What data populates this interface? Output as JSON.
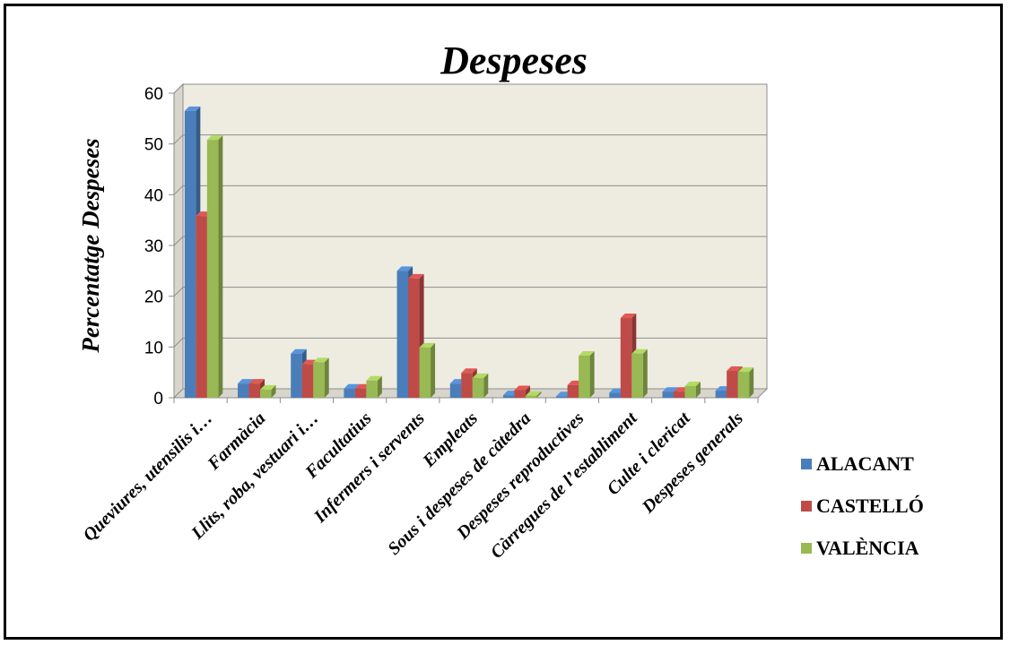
{
  "chart_data": {
    "type": "bar",
    "title": "Despeses",
    "xlabel": "",
    "ylabel": "Percentatge Despeses",
    "ylim": [
      0,
      60
    ],
    "yticks": [
      0,
      10,
      20,
      30,
      40,
      50,
      60
    ],
    "grid": true,
    "legend_position": "right",
    "categories": [
      "Queviures, utensilis i…",
      "Farmàcia",
      "Llits, roba, vestuari i…",
      "Facultatius",
      "Infermers i servents",
      "Empleats",
      "Sous i despeses de càtedra",
      "Despeses reproductives",
      "Càrregues de l’establiment",
      "Culte i clericat",
      "Despeses generals"
    ],
    "series": [
      {
        "name": "ALACANT",
        "color": "#4A7EBB",
        "values": [
          56.5,
          2.8,
          8.7,
          1.8,
          25.0,
          2.8,
          0.5,
          0.3,
          1.0,
          1.2,
          1.4
        ]
      },
      {
        "name": "CASTELLÓ",
        "color": "#BE4B48",
        "values": [
          35.8,
          2.8,
          6.6,
          1.8,
          23.5,
          4.9,
          1.5,
          2.5,
          15.7,
          1.2,
          5.3
        ]
      },
      {
        "name": "VALÈNCIA",
        "color": "#98B954",
        "values": [
          50.8,
          1.6,
          7.0,
          3.4,
          9.9,
          3.9,
          0.4,
          8.3,
          8.7,
          2.3,
          5.1
        ]
      }
    ]
  }
}
